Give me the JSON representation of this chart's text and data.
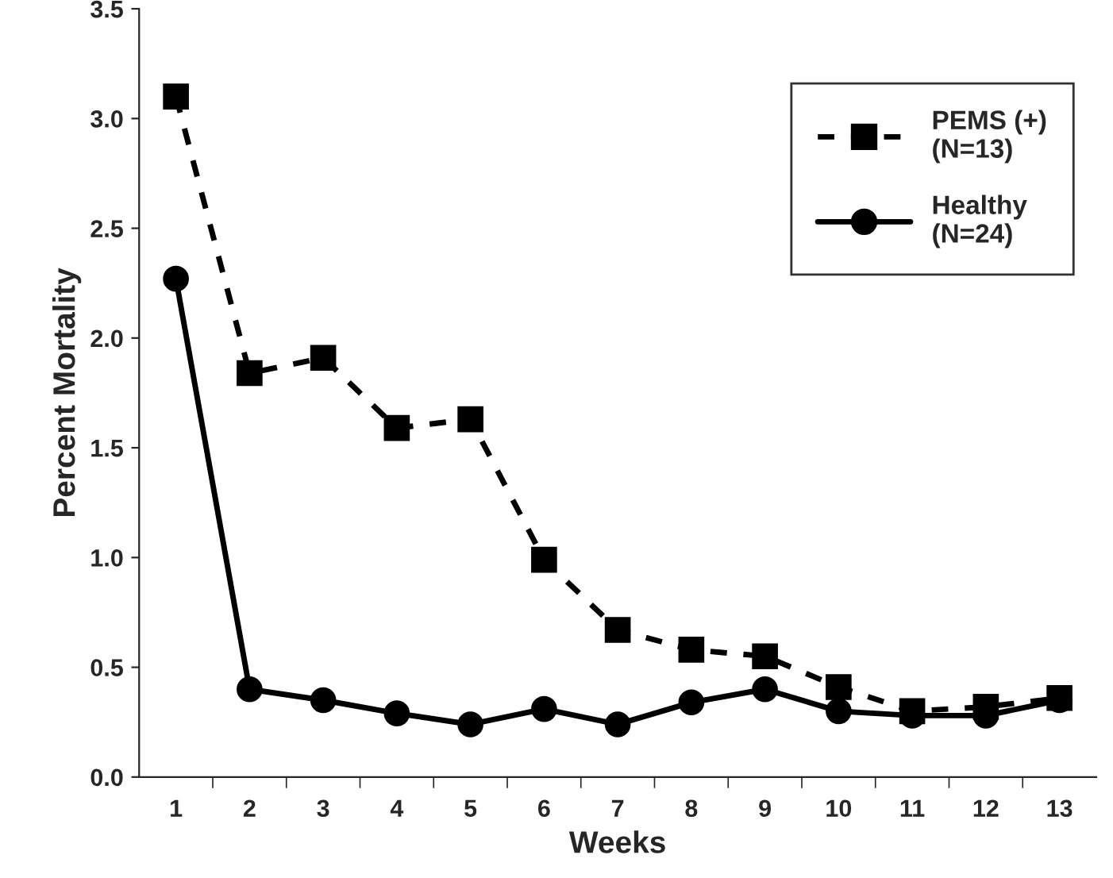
{
  "chart_data": {
    "type": "line",
    "xlabel": "Weeks",
    "ylabel": "Percent Mortality",
    "categories": [
      "1",
      "2",
      "3",
      "4",
      "5",
      "6",
      "7",
      "8",
      "9",
      "10",
      "11",
      "12",
      "13"
    ],
    "series": [
      {
        "name": "PEMS (+)\n(N=13)",
        "color": "#000000",
        "marker": "square",
        "line_style": "dashed",
        "values": [
          3.1,
          1.84,
          1.91,
          1.59,
          1.63,
          0.99,
          0.67,
          0.58,
          0.55,
          0.41,
          0.3,
          0.32,
          0.36
        ]
      },
      {
        "name": "Healthy\n(N=24)",
        "color": "#000000",
        "marker": "circle",
        "line_style": "solid",
        "values": [
          2.27,
          0.4,
          0.35,
          0.29,
          0.24,
          0.31,
          0.24,
          0.34,
          0.4,
          0.3,
          0.28,
          0.28,
          0.35
        ]
      }
    ],
    "ylim": [
      0,
      3.5
    ],
    "yticks": [
      {
        "value": 0,
        "label": "0.0"
      },
      {
        "value": 0.5,
        "label": "0.5"
      },
      {
        "value": 1,
        "label": "1.0"
      },
      {
        "value": 1.5,
        "label": "1.5"
      },
      {
        "value": 2,
        "label": "2.0"
      },
      {
        "value": 2.5,
        "label": "2.5"
      },
      {
        "value": 3,
        "label": "3.0"
      },
      {
        "value": 3.5,
        "label": "3.5"
      }
    ],
    "grid": false,
    "legend": "top right"
  }
}
